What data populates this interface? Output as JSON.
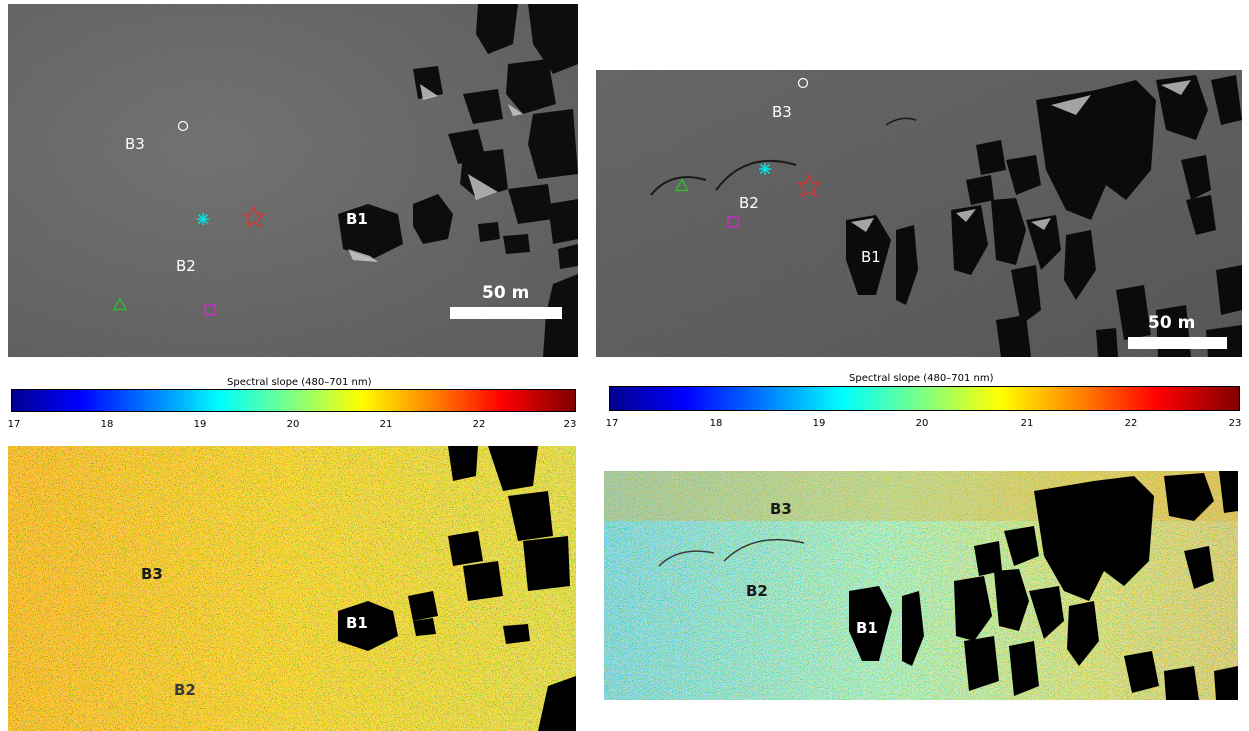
{
  "left": {
    "labels": {
      "b1": "B1",
      "b2": "B2",
      "b3": "B3"
    },
    "scale_bar": "50 m",
    "colorbar": {
      "title": "Spectral slope (480–701 nm)",
      "ticks": [
        "17",
        "18",
        "19",
        "20",
        "21",
        "22",
        "23"
      ]
    },
    "map_labels": {
      "b1": "B1",
      "b2": "B2",
      "b3": "B3"
    }
  },
  "right": {
    "labels": {
      "b1": "B1",
      "b2": "B2",
      "b3": "B3"
    },
    "scale_bar": "50 m",
    "colorbar": {
      "title": "Spectral slope (480–701 nm)",
      "ticks": [
        "17",
        "18",
        "19",
        "20",
        "21",
        "22",
        "23"
      ]
    },
    "map_labels": {
      "b1": "B1",
      "b2": "B2",
      "b3": "B3"
    }
  },
  "markers": {
    "circle": {
      "color": "#ffffff",
      "icon": "circle"
    },
    "asterisk": {
      "color": "#00e5e5",
      "icon": "asterisk"
    },
    "star": {
      "color": "#e03030",
      "icon": "star"
    },
    "triangle": {
      "color": "#22cc22",
      "icon": "triangle"
    },
    "square": {
      "color": "#e020e0",
      "icon": "square"
    }
  },
  "colormap": "jet"
}
